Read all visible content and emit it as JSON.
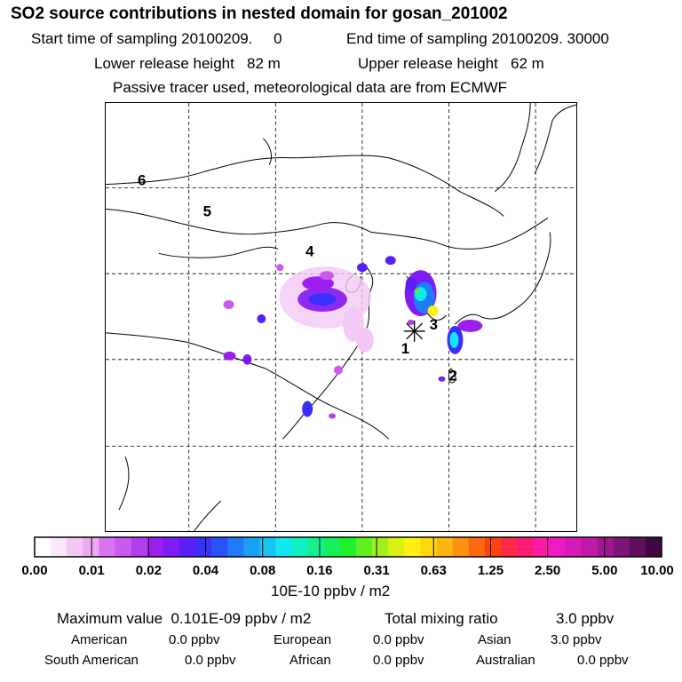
{
  "header": {
    "title": "SO2 source contributions in nested domain for gosan_201002",
    "line1_start": "Start time of sampling 20100209.     0",
    "line1_end": "End time of sampling 20100209. 30000",
    "line2_lower": "Lower release height   82 m",
    "line2_upper": "Upper release height   62 m",
    "line3": "Passive tracer used, meteorological data are from ECMWF"
  },
  "map": {
    "region_labels": [
      "1",
      "2",
      "3",
      "4",
      "5",
      "6"
    ],
    "marker": "receptor-star",
    "colors": {
      "coast": "#000000",
      "grid": "#000000"
    }
  },
  "colorbar": {
    "ticks": [
      "0.00",
      "0.01",
      "0.02",
      "0.04",
      "0.08",
      "0.16",
      "0.31",
      "0.63",
      "1.25",
      "2.50",
      "5.00",
      "10.00"
    ],
    "unit": "10E-10 ppbv / m2",
    "colors": [
      "#ffffff",
      "#fbe6fb",
      "#f3c8f5",
      "#ecaaf1",
      "#d875ee",
      "#c85aee",
      "#b43cef",
      "#9c1fef",
      "#7d1cf5",
      "#5a1ef8",
      "#3a30fb",
      "#2a52fb",
      "#1f7bf8",
      "#1aa0f5",
      "#17c4f2",
      "#12e8f2",
      "#10f0c0",
      "#13f08e",
      "#16f05a",
      "#1ef02a",
      "#60f020",
      "#a2f019",
      "#d8f014",
      "#fff010",
      "#ffd710",
      "#ffb510",
      "#ff9010",
      "#ff6a10",
      "#ff4310",
      "#ff2a44",
      "#ff1a74",
      "#ff1aa4",
      "#f01ac4",
      "#d81ab8",
      "#c018a8",
      "#a01690",
      "#801478",
      "#600f5c",
      "#400a40"
    ]
  },
  "summary": {
    "max_value": "Maximum value  0.101E-09 ppbv / m2",
    "total_label": "Total mixing ratio",
    "total_value": "3.0 ppbv",
    "rows": [
      [
        {
          "label": "American",
          "value": "0.0 ppbv"
        },
        {
          "label": "European",
          "value": "0.0 ppbv"
        },
        {
          "label": "Asian",
          "value": "3.0 ppbv"
        }
      ],
      [
        {
          "label": "South American",
          "value": "0.0 ppbv"
        },
        {
          "label": "African",
          "value": "0.0 ppbv"
        },
        {
          "label": "Australian",
          "value": "0.0 ppbv"
        }
      ]
    ]
  }
}
